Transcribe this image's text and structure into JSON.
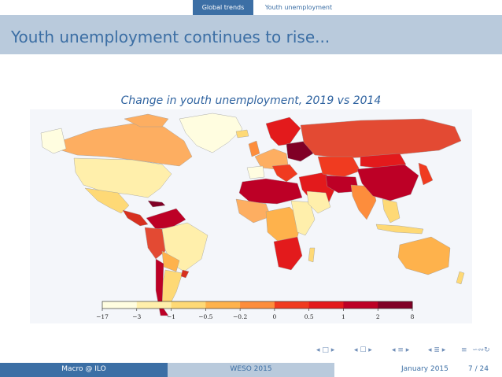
{
  "nav": {
    "tabs": [
      {
        "label": "Global trends",
        "active": true
      },
      {
        "label": "Youth unemployment",
        "active": false
      }
    ]
  },
  "slide": {
    "title": "Youth unemployment continues to rise..."
  },
  "chart_data": {
    "type": "choropleth",
    "title": "Change in youth unemployment, 2019 vs 2014",
    "colorbar": {
      "tick_labels": [
        "−17",
        "−3",
        "−1",
        "−0.5",
        "−0.2",
        "0",
        "0.5",
        "1",
        "2",
        "8"
      ],
      "colors": [
        "#fffde0",
        "#ffefab",
        "#fed976",
        "#feb24c",
        "#fd8d3c",
        "#f03b20",
        "#e31a1c",
        "#bd0026",
        "#800026"
      ]
    },
    "legend_placement": "bottom"
  },
  "footer": {
    "author": "Macro @ ILO",
    "source": "WESO 2015",
    "date": "January 2015",
    "page": "7 / 24"
  },
  "colors": {
    "accent": "#3c6fa5",
    "header_bg": "#b9cadc"
  }
}
